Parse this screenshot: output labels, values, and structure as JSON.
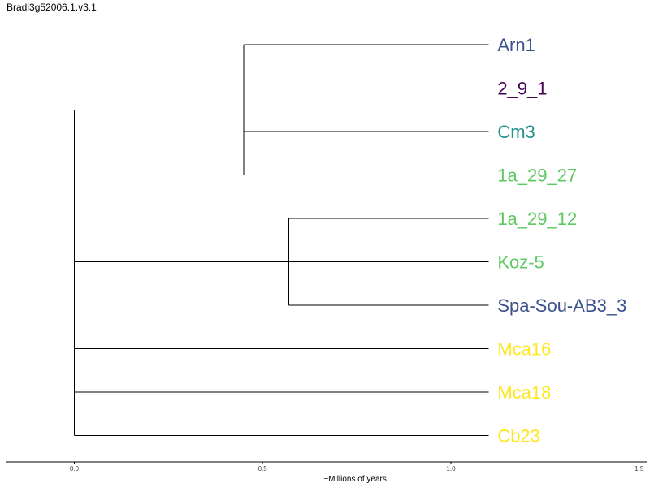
{
  "title": "Bradi3g52006.1.v3.1",
  "chart_data": {
    "type": "dendrogram",
    "title": "Bradi3g52006.1.v3.1",
    "xlabel": "~Millions of years",
    "xlim": [
      -0.18,
      1.52
    ],
    "xticks": [
      0.0,
      0.5,
      1.0,
      1.5
    ],
    "xtick_labels": [
      "0.0",
      "0.5",
      "1.0",
      "1.5"
    ],
    "grid": false,
    "tip_x": 1.1,
    "tips": [
      {
        "label": "Arn1",
        "color": "#3b528b"
      },
      {
        "label": "2_9_1",
        "color": "#440154"
      },
      {
        "label": "Cm3",
        "color": "#21918c"
      },
      {
        "label": "1a_29_27",
        "color": "#5ec962"
      },
      {
        "label": "1a_29_12",
        "color": "#5ec962"
      },
      {
        "label": "Koz-5",
        "color": "#5ec962"
      },
      {
        "label": "Spa-Sou-AB3_3",
        "color": "#3b528b"
      },
      {
        "label": "Mca16",
        "color": "#fde725"
      },
      {
        "label": "Mca18",
        "color": "#fde725"
      },
      {
        "label": "Cb23",
        "color": "#fde725"
      }
    ],
    "clades": [
      {
        "x": 0.0,
        "children": [
          {
            "x": 0.45,
            "children": [
              0,
              1,
              2,
              3
            ]
          },
          {
            "x": 0.0,
            "children": [
              {
                "x": 0.57,
                "children": [
                  4,
                  5,
                  6
                ]
              },
              7,
              8,
              9
            ]
          }
        ]
      }
    ]
  }
}
